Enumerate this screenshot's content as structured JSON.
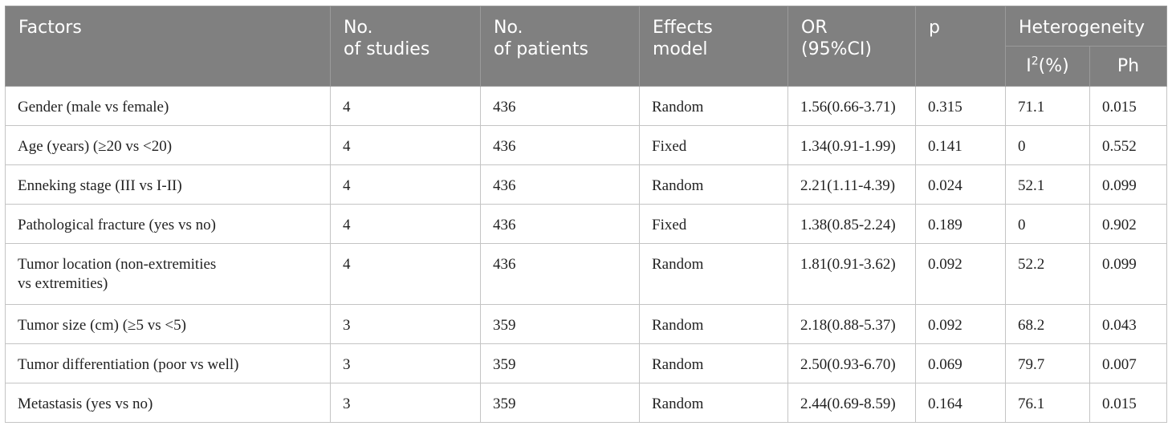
{
  "header": {
    "factors": "Factors",
    "studies_line1": "No.",
    "studies_line2": "of studies",
    "patients_line1": "No.",
    "patients_line2": "of patients",
    "effects_line1": "Effects",
    "effects_line2": "model",
    "or_line1": "OR",
    "or_line2": "(95%CI)",
    "p": "p",
    "heterogeneity": "Heterogeneity",
    "i2_base": "I",
    "i2_sup": "2",
    "i2_suffix": "(%)",
    "ph": "Ph"
  },
  "rows": [
    {
      "factor": "Gender (male vs female)",
      "studies": "4",
      "patients": "436",
      "model": "Random",
      "or": "1.56(0.66-3.71)",
      "p": "0.315",
      "i2": "71.1",
      "ph": "0.015"
    },
    {
      "factor": "Age (years) (≥20 vs <20)",
      "studies": "4",
      "patients": "436",
      "model": "Fixed",
      "or": "1.34(0.91-1.99)",
      "p": "0.141",
      "i2": "0",
      "ph": "0.552"
    },
    {
      "factor": "Enneking stage (III vs I-II)",
      "studies": "4",
      "patients": "436",
      "model": "Random",
      "or": "2.21(1.11-4.39)",
      "p": "0.024",
      "i2": "52.1",
      "ph": "0.099"
    },
    {
      "factor": "Pathological fracture (yes vs no)",
      "studies": "4",
      "patients": "436",
      "model": "Fixed",
      "or": "1.38(0.85-2.24)",
      "p": "0.189",
      "i2": "0",
      "ph": "0.902"
    },
    {
      "factor": "Tumor location (non-extremities",
      "factor_line2": "vs extremities)",
      "studies": "4",
      "patients": "436",
      "model": "Random",
      "or": "1.81(0.91-3.62)",
      "p": "0.092",
      "i2": "52.2",
      "ph": "0.099"
    },
    {
      "factor": "Tumor size (cm) (≥5 vs <5)",
      "studies": "3",
      "patients": "359",
      "model": "Random",
      "or": "2.18(0.88-5.37)",
      "p": "0.092",
      "i2": "68.2",
      "ph": "0.043"
    },
    {
      "factor": "Tumor differentiation (poor vs well)",
      "studies": "3",
      "patients": "359",
      "model": "Random",
      "or": "2.50(0.93-6.70)",
      "p": "0.069",
      "i2": "79.7",
      "ph": "0.007"
    },
    {
      "factor": "Metastasis (yes vs no)",
      "studies": "3",
      "patients": "359",
      "model": "Random",
      "or": "2.44(0.69-8.59)",
      "p": "0.164",
      "i2": "76.1",
      "ph": "0.015"
    }
  ]
}
